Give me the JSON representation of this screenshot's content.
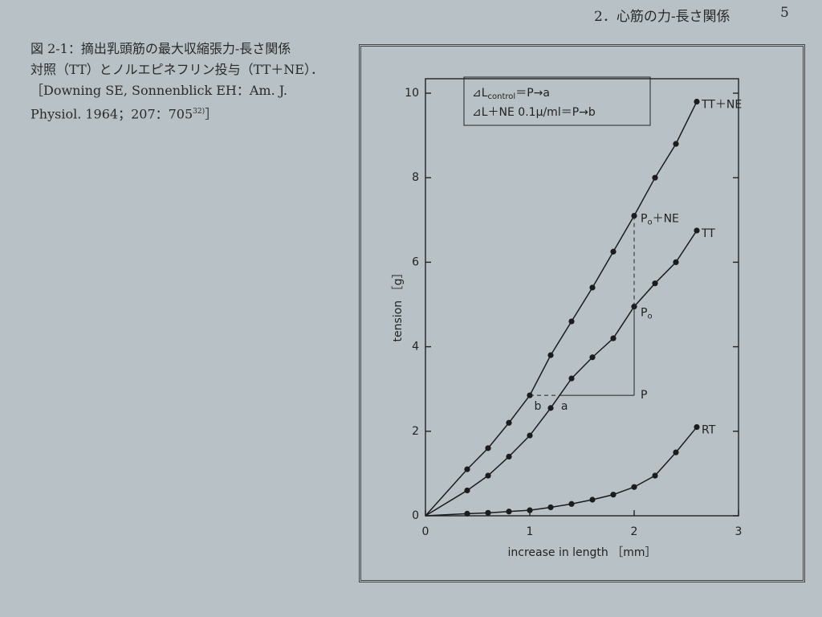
{
  "header": {
    "section": "2．心筋の力-長さ関係",
    "page": "5"
  },
  "caption": {
    "title": "図 2-1：摘出乳頭筋の最大収縮張力-長さ関係",
    "text": "対照（TT）とノルエピネフリン投与（TT＋NE）．［Downing SE, Sonnenblick EH：Am. J. Physiol. 1964；207：705",
    "ref_sup": "32)",
    "end": "］"
  },
  "chart_data": {
    "type": "line",
    "x_label": "increase in length ［mm］",
    "y_label": "tension ［g］",
    "x": [
      0,
      0.4,
      0.6,
      0.8,
      1.0,
      1.2,
      1.4,
      1.6,
      1.8,
      2.0,
      2.2,
      2.4,
      2.6
    ],
    "series": [
      {
        "name": "TT＋NE",
        "color": "#1c1c1c",
        "values": [
          0,
          1.1,
          1.6,
          2.2,
          2.85,
          3.8,
          4.6,
          5.4,
          6.25,
          7.1,
          8.0,
          8.8,
          9.8
        ]
      },
      {
        "name": "TT",
        "color": "#1c1c1c",
        "values": [
          0,
          0.6,
          0.95,
          1.4,
          1.9,
          2.55,
          3.25,
          3.75,
          4.2,
          4.95,
          5.5,
          6.0,
          6.75
        ]
      },
      {
        "name": "RT",
        "color": "#1c1c1c",
        "values": [
          0,
          0.05,
          0.07,
          0.1,
          0.13,
          0.2,
          0.28,
          0.38,
          0.5,
          0.68,
          0.95,
          1.5,
          2.1
        ]
      }
    ],
    "xlim": [
      0,
      3
    ],
    "xticks": [
      0,
      1,
      2,
      3
    ],
    "ylim": [
      0,
      10
    ],
    "yticks": [
      0,
      2,
      4,
      6,
      8,
      10
    ],
    "annotations": {
      "legend_line1": [
        "⊿L",
        "control",
        "＝P→a"
      ],
      "legend_line2": "⊿L＋NE 0.1μ/ml＝P→b",
      "p0_ne": [
        "P",
        "o",
        "＋NE"
      ],
      "p0": [
        "P",
        "o"
      ],
      "p": "P",
      "a": "a",
      "b": "b"
    }
  }
}
